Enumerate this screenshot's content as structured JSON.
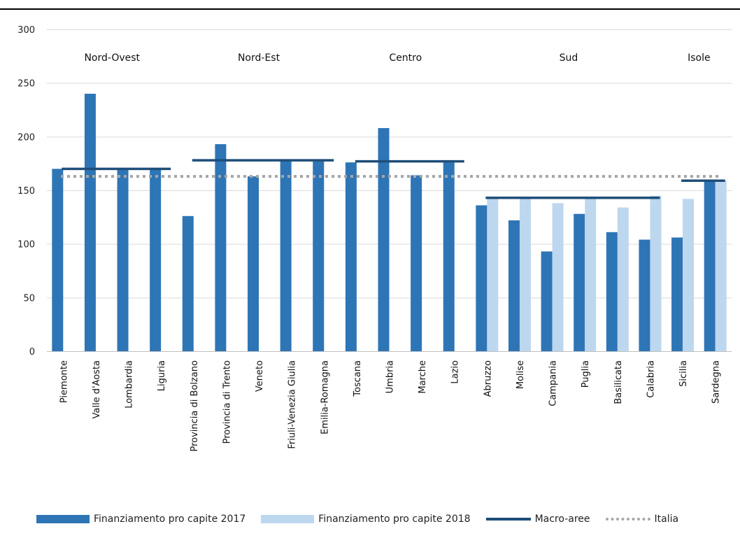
{
  "colors": {
    "s2017": "#2e75b6",
    "s2018": "#bdd7ee",
    "macro": "#1f4e79",
    "italia": "#a6a6a6",
    "grid": "#d9d9d9"
  },
  "legend": {
    "s2017": "Finanziamento pro capite 2017",
    "s2018": "Finanziamento pro capite 2018",
    "macro": "Macro-aree",
    "italia": "Italia"
  },
  "chart_data": {
    "type": "bar",
    "ylim": [
      0,
      300
    ],
    "yticks": [
      0,
      50,
      100,
      150,
      200,
      250,
      300
    ],
    "grid": true,
    "legend_position": "bottom",
    "categories": [
      "Piemonte",
      "Valle d'Aosta",
      "Lombardia",
      "Liguria",
      "Provincia di Bolzano",
      "Provincia di Trento",
      "Veneto",
      "Friuli-Venezia Giulia",
      "Emilia-Romagna",
      "Toscana",
      "Umbria",
      "Marche",
      "Lazio",
      "Abruzzo",
      "Molise",
      "Campania",
      "Puglia",
      "Basilicata",
      "Calabria",
      "Sicilia",
      "Sardegna"
    ],
    "series": [
      {
        "name": "Finanziamento pro capite 2017",
        "values": [
          170,
          240,
          170,
          170,
          126,
          193,
          163,
          178,
          177,
          176,
          208,
          164,
          176,
          136,
          122,
          93,
          128,
          111,
          104,
          106,
          158
        ]
      },
      {
        "name": "Finanziamento pro capite 2018",
        "values": [
          null,
          null,
          null,
          null,
          null,
          null,
          null,
          null,
          null,
          null,
          null,
          null,
          null,
          143,
          143,
          138,
          143,
          134,
          145,
          142,
          159
        ]
      }
    ],
    "macro_areas": [
      {
        "name": "Nord-Ovest",
        "from": 0,
        "to": 3,
        "value": 170
      },
      {
        "name": "Nord-Est",
        "from": 4,
        "to": 8,
        "value": 178
      },
      {
        "name": "Centro",
        "from": 9,
        "to": 12,
        "value": 177
      },
      {
        "name": "Sud",
        "from": 13,
        "to": 18,
        "value": 143
      },
      {
        "name": "Isole",
        "from": 19,
        "to": 20,
        "value": 159
      }
    ],
    "italia": 163
  }
}
